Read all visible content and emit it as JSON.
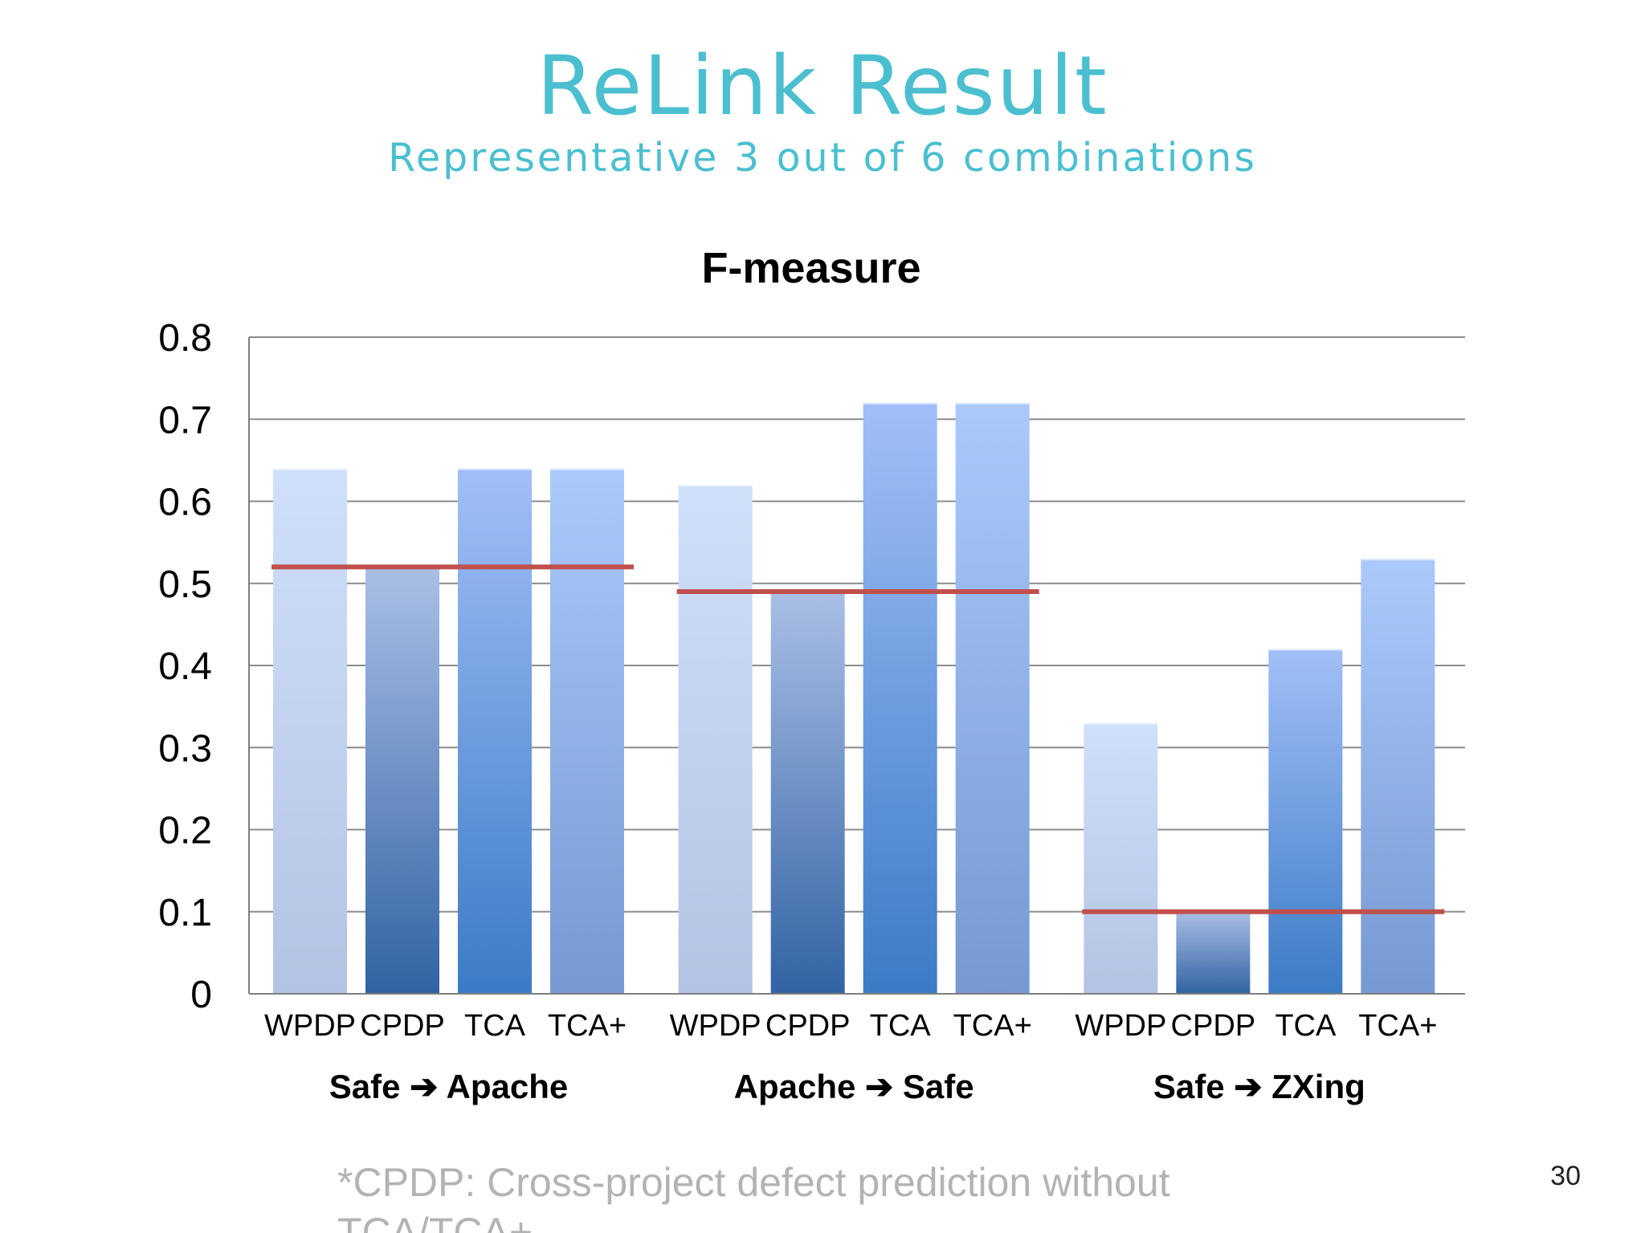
{
  "slide": {
    "title": "ReLink Result",
    "subtitle": "Representative 3 out of 6 combinations",
    "footnote": "*CPDP: Cross-project defect prediction without TCA/TCA+",
    "page_number": "30"
  },
  "chart_data": {
    "type": "bar",
    "title": "F-measure",
    "xlabel": "",
    "ylabel": "",
    "ylim": [
      0,
      0.8
    ],
    "yticks": [
      "0",
      "0.1",
      "0.2",
      "0.3",
      "0.4",
      "0.5",
      "0.6",
      "0.7",
      "0.8"
    ],
    "grid": true,
    "legend": "none",
    "groups": [
      {
        "label": "Safe ➔ Apache",
        "categories": [
          "WPDP",
          "CPDP",
          "TCA",
          "TCA+"
        ],
        "values": [
          0.64,
          0.52,
          0.64,
          0.64
        ],
        "reference_line": 0.52
      },
      {
        "label": "Apache ➔ Safe",
        "categories": [
          "WPDP",
          "CPDP",
          "TCA",
          "TCA+"
        ],
        "values": [
          0.62,
          0.49,
          0.72,
          0.72
        ],
        "reference_line": 0.49
      },
      {
        "label": "Safe ➔ ZXing",
        "categories": [
          "WPDP",
          "CPDP",
          "TCA",
          "TCA+"
        ],
        "values": [
          0.33,
          0.1,
          0.42,
          0.53
        ],
        "reference_line": 0.1
      }
    ],
    "colors": {
      "WPDP": [
        "#cfe0fb",
        "#b3c3e3"
      ],
      "CPDP": [
        "#aabfe6",
        "#3163a3"
      ],
      "TCA": [
        "#a2bff8",
        "#3b7bc6"
      ],
      "TCA+": [
        "#abc9fb",
        "#7699d2"
      ],
      "reference_line": "#c0504d",
      "grid": "#8c8c8c",
      "axis": "#7f7f7f"
    }
  }
}
